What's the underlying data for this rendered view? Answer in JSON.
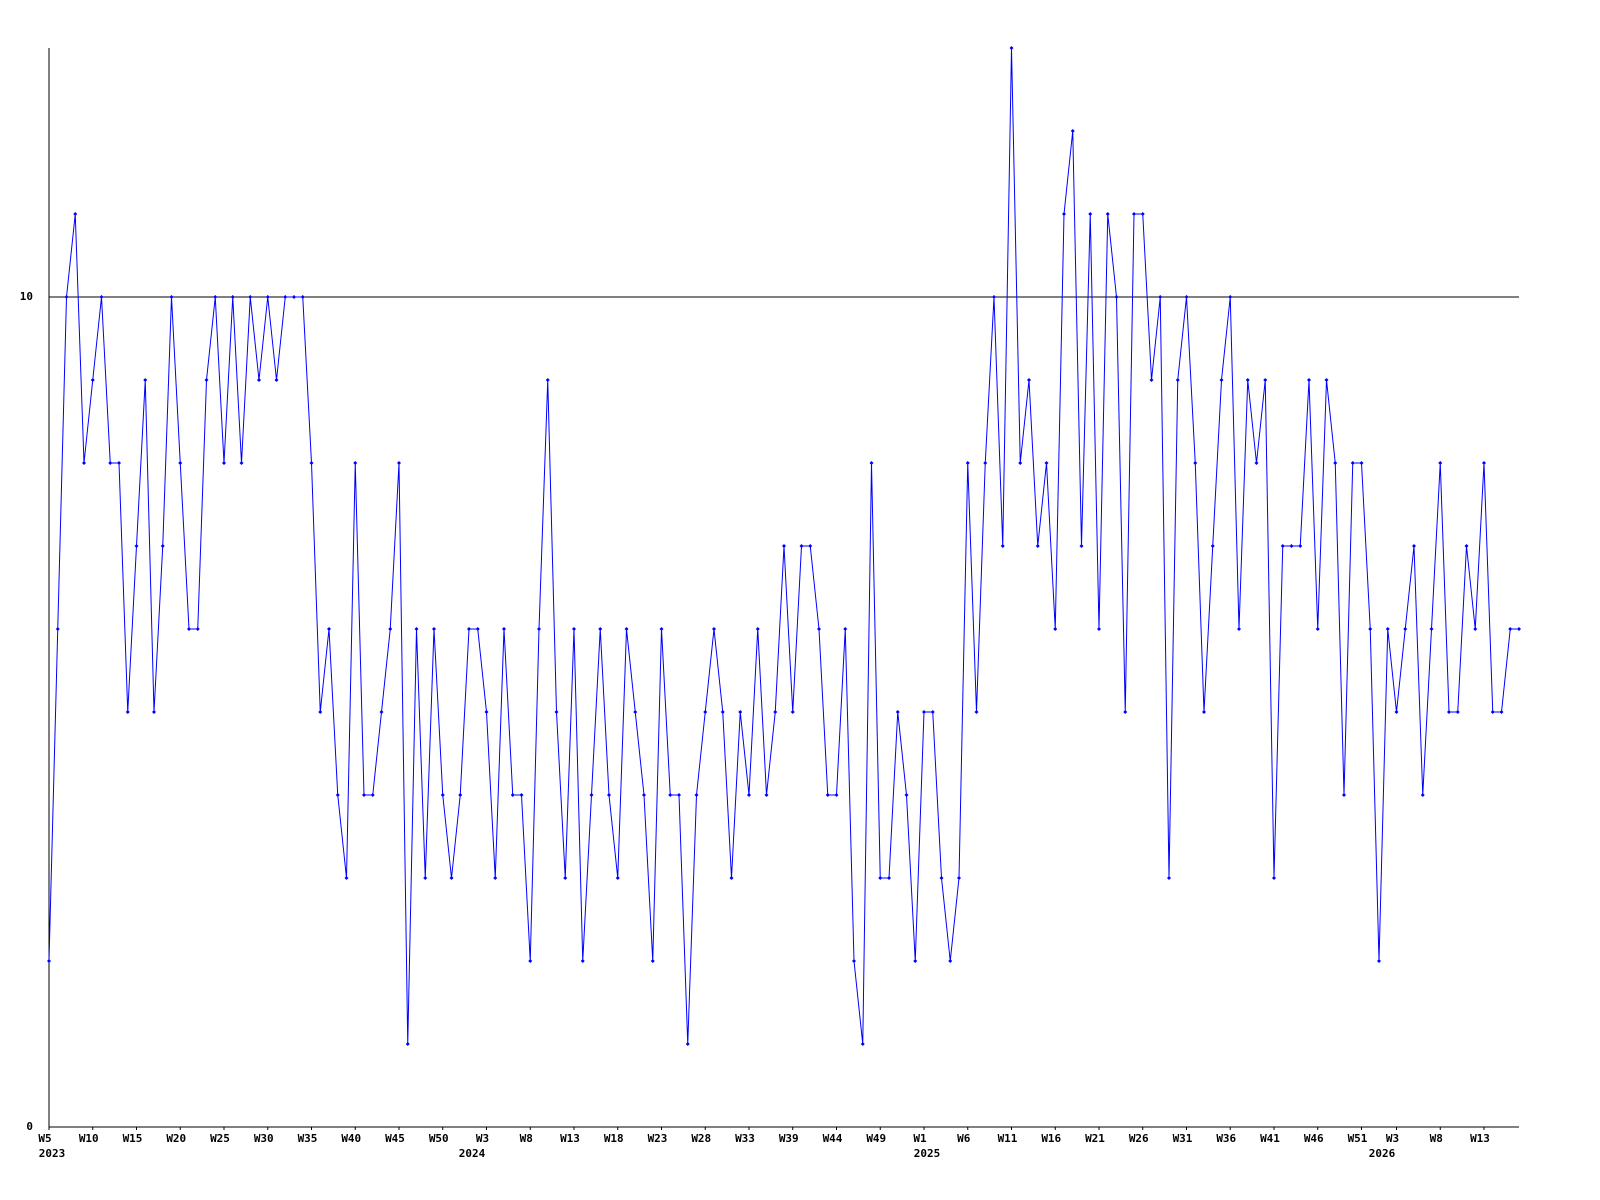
{
  "chart_data": {
    "type": "line",
    "values": [
      2,
      6,
      10,
      11,
      8,
      9,
      10,
      8,
      8,
      5,
      7,
      9,
      5,
      7,
      10,
      8,
      6,
      6,
      9,
      10,
      8,
      10,
      8,
      10,
      9,
      10,
      9,
      10,
      10,
      10,
      8,
      5,
      6,
      4,
      3,
      8,
      4,
      4,
      5,
      6,
      8,
      1,
      6,
      3,
      6,
      4,
      3,
      4,
      6,
      6,
      5,
      3,
      6,
      4,
      4,
      2,
      6,
      9,
      5,
      3,
      6,
      2,
      4,
      6,
      4,
      3,
      6,
      5,
      4,
      2,
      6,
      4,
      4,
      1,
      4,
      5,
      6,
      5,
      3,
      5,
      4,
      6,
      4,
      5,
      7,
      5,
      7,
      7,
      6,
      4,
      4,
      6,
      2,
      1,
      8,
      3,
      3,
      5,
      4,
      2,
      5,
      5,
      3,
      2,
      3,
      8,
      5,
      8,
      10,
      7,
      13,
      8,
      9,
      7,
      8,
      6,
      11,
      12,
      7,
      11,
      6,
      11,
      10,
      5,
      11,
      11,
      9,
      10,
      3,
      9,
      10,
      8,
      5,
      7,
      9,
      10,
      6,
      9,
      8,
      9,
      3,
      7,
      7,
      7,
      9,
      6,
      9,
      8,
      4,
      8,
      8,
      6,
      2,
      6,
      5,
      6,
      7,
      4,
      6,
      8,
      5,
      5,
      7,
      6,
      8,
      5,
      5,
      6,
      6
    ],
    "color": "#0000ff",
    "ylim": [
      0,
      13
    ],
    "yticks": [
      0,
      10
    ],
    "grid": true,
    "xlim": [
      0,
      168
    ],
    "xticks": [
      {
        "value": 0,
        "label": "W5"
      },
      {
        "value": 5,
        "label": "W10"
      },
      {
        "value": 10,
        "label": "W15"
      },
      {
        "value": 15,
        "label": "W20"
      },
      {
        "value": 20,
        "label": "W25"
      },
      {
        "value": 25,
        "label": "W30"
      },
      {
        "value": 30,
        "label": "W35"
      },
      {
        "value": 35,
        "label": "W40"
      },
      {
        "value": 40,
        "label": "W45"
      },
      {
        "value": 45,
        "label": "W50"
      },
      {
        "value": 50,
        "label": "W3"
      },
      {
        "value": 55,
        "label": "W8"
      },
      {
        "value": 60,
        "label": "W13"
      },
      {
        "value": 65,
        "label": "W18"
      },
      {
        "value": 70,
        "label": "W23"
      },
      {
        "value": 75,
        "label": "W28"
      },
      {
        "value": 80,
        "label": "W33"
      },
      {
        "value": 85,
        "label": "W39"
      },
      {
        "value": 90,
        "label": "W44"
      },
      {
        "value": 95,
        "label": "W49"
      },
      {
        "value": 100,
        "label": "W1"
      },
      {
        "value": 105,
        "label": "W6"
      },
      {
        "value": 110,
        "label": "W11"
      },
      {
        "value": 115,
        "label": "W16"
      },
      {
        "value": 120,
        "label": "W21"
      },
      {
        "value": 125,
        "label": "W26"
      },
      {
        "value": 130,
        "label": "W31"
      },
      {
        "value": 135,
        "label": "W36"
      },
      {
        "value": 140,
        "label": "W41"
      },
      {
        "value": 145,
        "label": "W46"
      },
      {
        "value": 150,
        "label": "W51"
      },
      {
        "value": 154,
        "label": "W3"
      },
      {
        "value": 159,
        "label": "W8"
      },
      {
        "value": 164,
        "label": "W13"
      }
    ],
    "year_ticks": [
      {
        "value": 0,
        "label": "2023"
      },
      {
        "value": 48,
        "label": "2024"
      },
      {
        "value": 100,
        "label": "2025"
      },
      {
        "value": 152,
        "label": "2026"
      }
    ]
  }
}
